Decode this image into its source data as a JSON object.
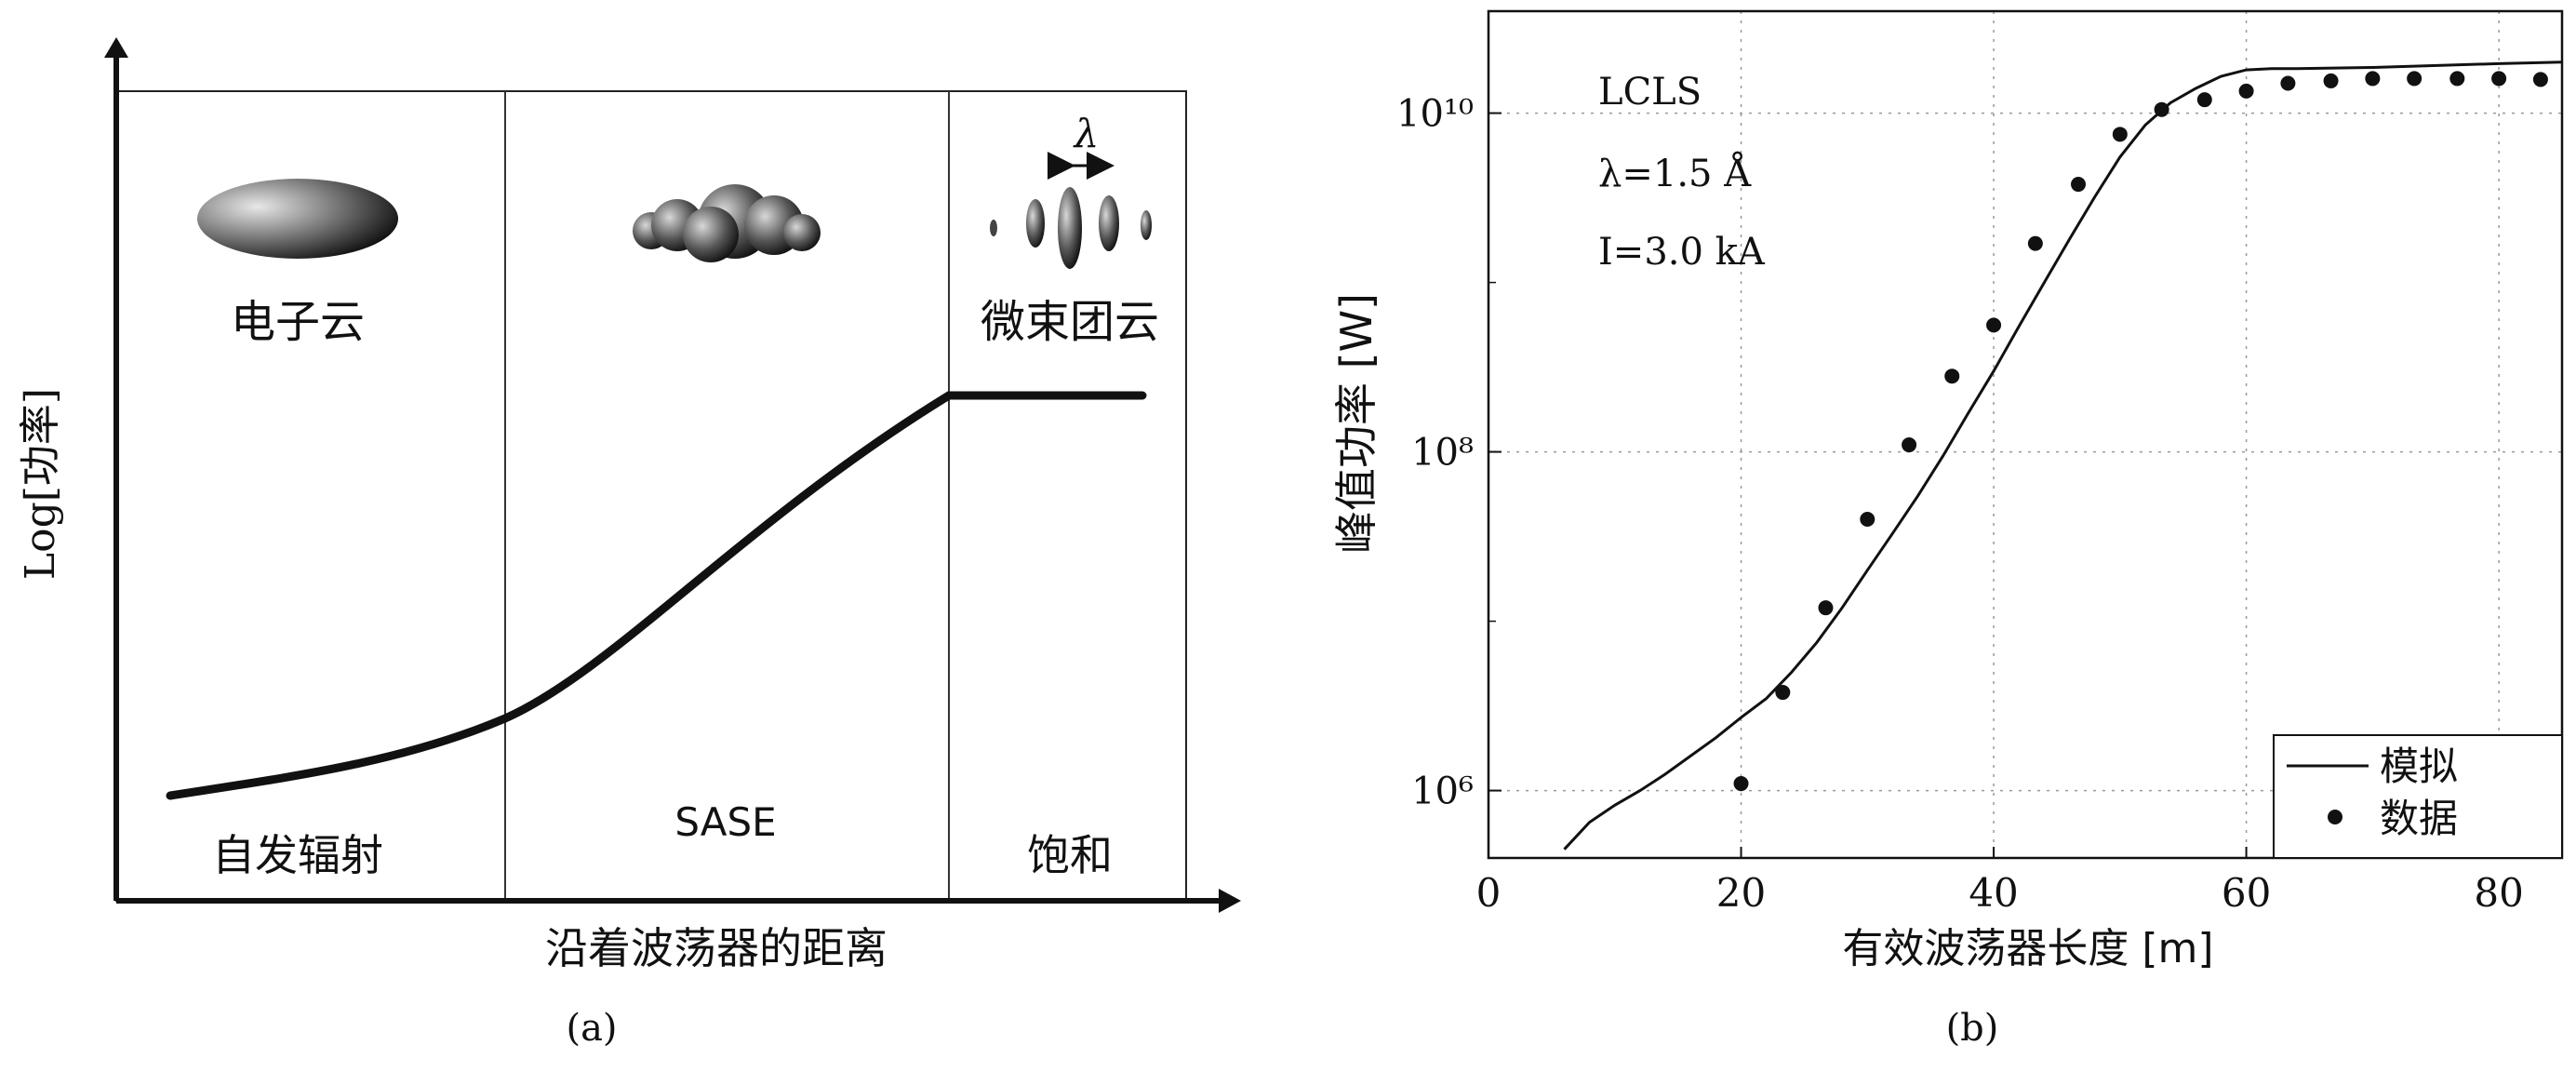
{
  "panel_a": {
    "caption": "(a)",
    "y_label": "Log[功率]",
    "x_label": "沿着波荡器的距离",
    "regions": [
      {
        "cloud_label": "电子云",
        "stage_label": "自发辐射"
      },
      {
        "cloud_label": "",
        "stage_label": "SASE"
      },
      {
        "cloud_label": "微束团云",
        "stage_label": "饱和"
      }
    ],
    "lambda_symbol": "λ"
  },
  "panel_b": {
    "caption": "(b)",
    "annotations": {
      "facility": "LCLS",
      "wavelength": "λ=1.5 Å",
      "current": "I=3.0 kA"
    }
  },
  "chart_data": [
    {
      "type": "line",
      "title": "",
      "xlabel": "沿着波荡器的距离",
      "ylabel": "Log[功率]",
      "regions": [
        "自发辐射",
        "SASE",
        "饱和"
      ],
      "series": [
        {
          "values_shape": "slow rise, exponential growth, flat saturation",
          "x": [
            0,
            0.1,
            0.2,
            0.3,
            0.35,
            0.45,
            0.55,
            0.65,
            0.75,
            0.8,
            0.95
          ],
          "y": [
            0.12,
            0.13,
            0.15,
            0.2,
            0.24,
            0.35,
            0.48,
            0.6,
            0.69,
            0.71,
            0.71
          ]
        }
      ]
    },
    {
      "type": "line",
      "title": "",
      "xlabel": "有效波荡器长度 [m]",
      "ylabel": "峰值功率 [W]",
      "xlim": [
        0,
        85
      ],
      "ylim": [
        400000,
        40000000000
      ],
      "yscale": "log",
      "xticks": [
        0,
        20,
        40,
        60,
        80
      ],
      "yticks": [
        1000000,
        100000000,
        10000000000
      ],
      "ytick_labels": [
        "10⁶",
        "10⁸",
        "10¹⁰"
      ],
      "grid": true,
      "legend": "bottom-right",
      "series": [
        {
          "name": "模拟",
          "style": "line",
          "x": [
            6,
            8,
            10,
            12,
            14,
            16,
            18,
            20,
            22,
            24,
            26,
            28,
            30,
            32,
            34,
            36,
            38,
            40,
            42,
            44,
            46,
            48,
            50,
            52,
            54,
            56,
            58,
            60,
            62,
            64,
            70,
            76,
            80,
            85
          ],
          "y": [
            450000,
            650000,
            820000,
            1000000,
            1250000,
            1600000,
            2050000,
            2700000,
            3500000,
            5000000,
            7500000,
            12000000,
            20000000,
            33000000,
            55000000,
            95000000,
            170000000,
            300000000,
            550000000,
            1000000000,
            1800000000,
            3200000000,
            5500000000,
            8500000000,
            11500000000,
            14000000000,
            16500000000,
            18000000000,
            18300000000,
            18300000000,
            18600000000,
            19200000000,
            19600000000,
            20000000000
          ]
        },
        {
          "name": "数据",
          "style": "markers",
          "x": [
            20,
            23.3,
            26.7,
            30,
            33.3,
            36.7,
            40,
            43.3,
            46.7,
            50,
            53.3,
            56.7,
            60,
            63.3,
            66.7,
            70,
            73.3,
            76.7,
            80,
            83.3
          ],
          "y": [
            1100000,
            3800000,
            12000000,
            40000000,
            110000000,
            280000000,
            560000000,
            1700000000,
            3800000000,
            7500000000,
            10500000000,
            12000000000,
            13500000000,
            15000000000,
            15500000000,
            16000000000,
            16000000000,
            16000000000,
            16000000000,
            15800000000
          ]
        }
      ]
    }
  ]
}
